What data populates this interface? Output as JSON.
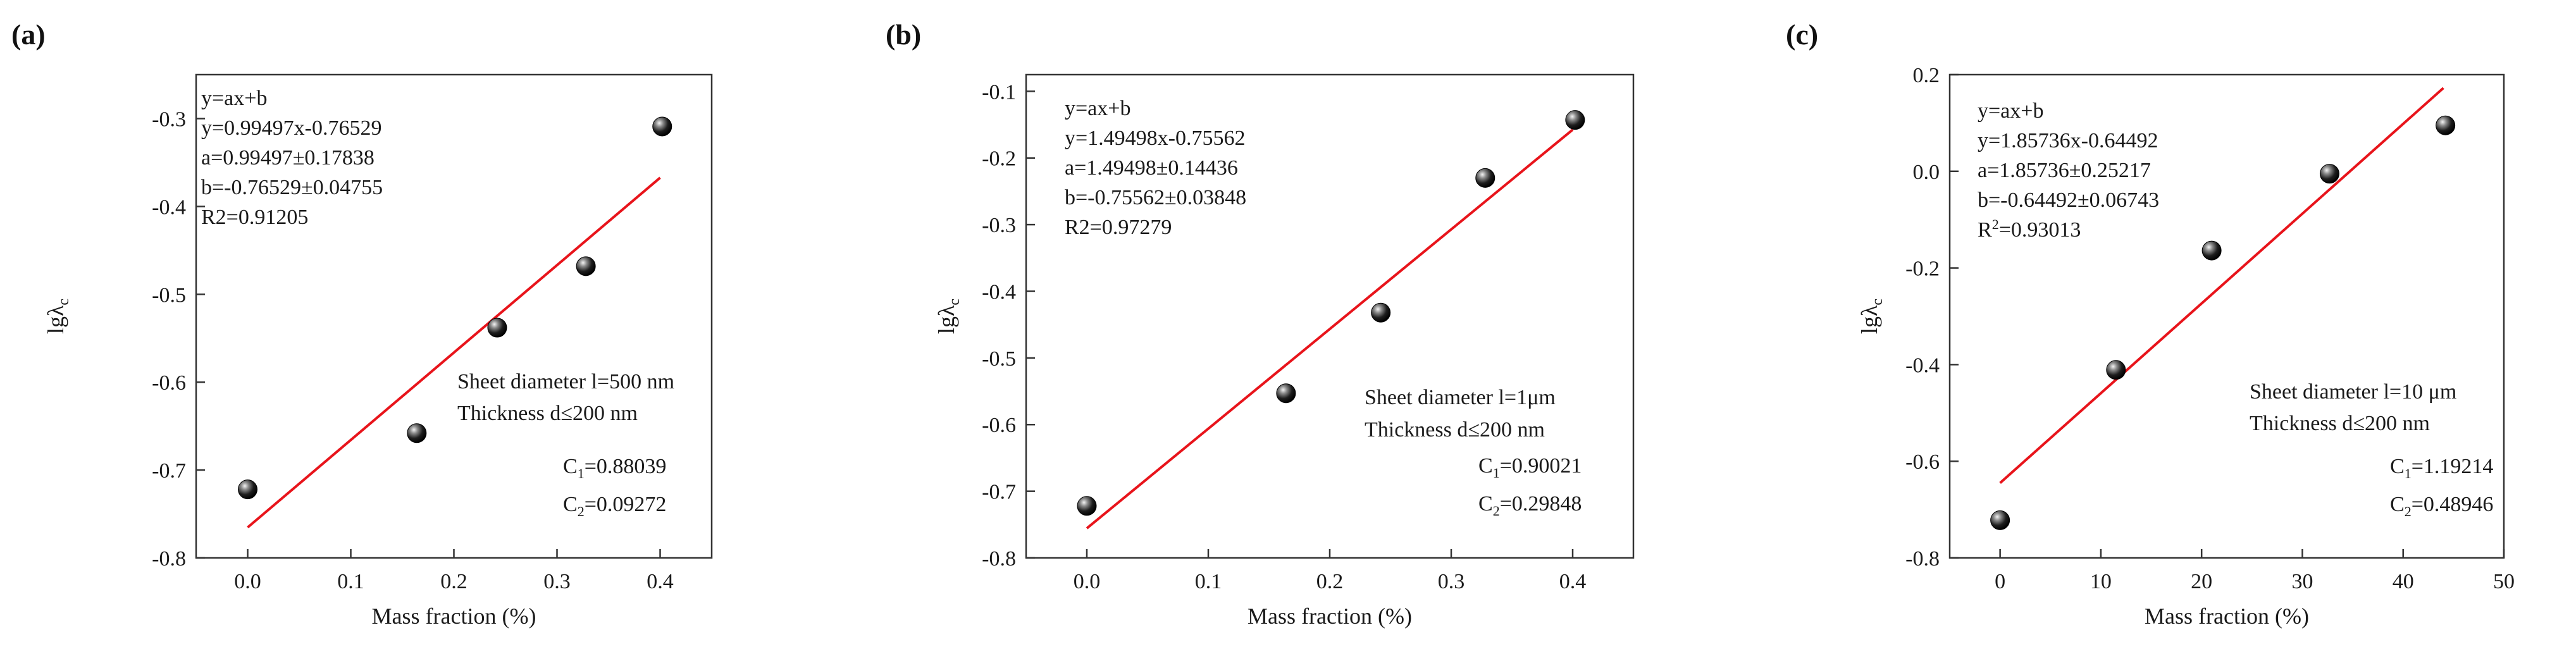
{
  "chart_data": [
    {
      "type": "scatter",
      "panel_label": "(a)",
      "xlabel": "Mass fraction (%)",
      "ylabel": "lgλc",
      "xlim": [
        -0.05,
        0.45
      ],
      "ylim": [
        -0.8,
        -0.25
      ],
      "xticks": [
        0.0,
        0.1,
        0.2,
        0.3,
        0.4
      ],
      "yticks": [
        -0.8,
        -0.7,
        -0.6,
        -0.5,
        -0.4,
        -0.3
      ],
      "xtick_labels": [
        "0.0",
        "0.1",
        "0.2",
        "0.3",
        "0.4"
      ],
      "ytick_labels": [
        "-0.8",
        "-0.7",
        "-0.6",
        "-0.5",
        "-0.4",
        "-0.3"
      ],
      "x": [
        0.0,
        0.164,
        0.242,
        0.328,
        0.402
      ],
      "y": [
        -0.722,
        -0.658,
        -0.538,
        -0.468,
        -0.309
      ],
      "fit": {
        "slope": 0.99497,
        "intercept": -0.76529,
        "x_range": [
          0.0,
          0.4
        ],
        "color": "#e8141b"
      },
      "annotations": [
        "y=ax+b",
        "y=0.99497x-0.76529",
        "a=0.99497±0.17838",
        "b=-0.76529±0.04755",
        "R2=0.91205"
      ],
      "notes": {
        "sheet": "Sheet diameter l=500 nm",
        "thickness": "Thickness d≤200 nm",
        "c1_prefix": "C",
        "c1_sub": "1",
        "c1_value": "=0.88039",
        "c2_prefix": "C",
        "c2_sub": "2",
        "c2_value": "=0.09272"
      }
    },
    {
      "type": "scatter",
      "panel_label": "(b)",
      "xlabel": "Mass fraction  (%)",
      "ylabel": "lgλc",
      "xlim": [
        -0.05,
        0.45
      ],
      "ylim": [
        -0.8,
        -0.075
      ],
      "xticks": [
        0.0,
        0.1,
        0.2,
        0.3,
        0.4
      ],
      "yticks": [
        -0.8,
        -0.7,
        -0.6,
        -0.5,
        -0.4,
        -0.3,
        -0.2,
        -0.1
      ],
      "xtick_labels": [
        "0.0",
        "0.1",
        "0.2",
        "0.3",
        "0.4"
      ],
      "ytick_labels": [
        "-0.8",
        "-0.7",
        "-0.6",
        "-0.5",
        "-0.4",
        "-0.3",
        "-0.2",
        "-0.1"
      ],
      "x": [
        0.0,
        0.164,
        0.242,
        0.328,
        0.402
      ],
      "y": [
        -0.722,
        -0.553,
        -0.432,
        -0.23,
        -0.143
      ],
      "fit": {
        "slope": 1.49498,
        "intercept": -0.75562,
        "x_range": [
          0.0,
          0.4
        ],
        "color": "#e8141b"
      },
      "annotations": [
        "y=ax+b",
        "y=1.49498x-0.75562",
        "a=1.49498±0.14436",
        "b=-0.75562±0.03848",
        "R2=0.97279"
      ],
      "notes": {
        "sheet": "Sheet diameter  l=1μm",
        "thickness": "Thickness  d≤200 nm",
        "c1_prefix": "C",
        "c1_sub": "1",
        "c1_value": "=0.90021",
        "c2_prefix": "C",
        "c2_sub": "2",
        "c2_value": "=0.29848"
      }
    },
    {
      "type": "scatter",
      "panel_label": "(c)",
      "xlabel": "Mass fraction  (%)",
      "ylabel": "lgλc",
      "xlim": [
        -5,
        50
      ],
      "ylim": [
        -0.8,
        0.2
      ],
      "xticks": [
        0,
        10,
        20,
        30,
        40,
        50
      ],
      "yticks": [
        -0.8,
        -0.6,
        -0.4,
        -0.2,
        0.0,
        0.2
      ],
      "xtick_labels": [
        "0",
        "10",
        "20",
        "30",
        "40",
        "50"
      ],
      "ytick_labels": [
        "-0.8",
        "-0.6",
        "-0.4",
        "-0.2",
        "0.0",
        "0.2"
      ],
      "x": [
        0.0,
        11.5,
        21.0,
        32.7,
        44.2
      ],
      "y": [
        -0.722,
        -0.411,
        -0.164,
        -0.005,
        0.095
      ],
      "fit": {
        "slope": 0.0185736,
        "intercept": -0.64492,
        "x_range": [
          0.0,
          44.0
        ],
        "color": "#e8141b"
      },
      "annotations": [
        "y=ax+b",
        "y=1.85736x-0.64492",
        "a=1.85736±0.25217",
        "b=-0.64492±0.06743",
        "R2=0.93013"
      ],
      "notes": {
        "sheet": "Sheet diameter l=10 μm",
        "thickness": "Thickness d≤200 nm",
        "c1_prefix": "C",
        "c1_sub": "1",
        "c1_value": "=1.19214",
        "c2_prefix": "C",
        "c2_sub": "2",
        "c2_value": "=0.48946"
      }
    }
  ]
}
